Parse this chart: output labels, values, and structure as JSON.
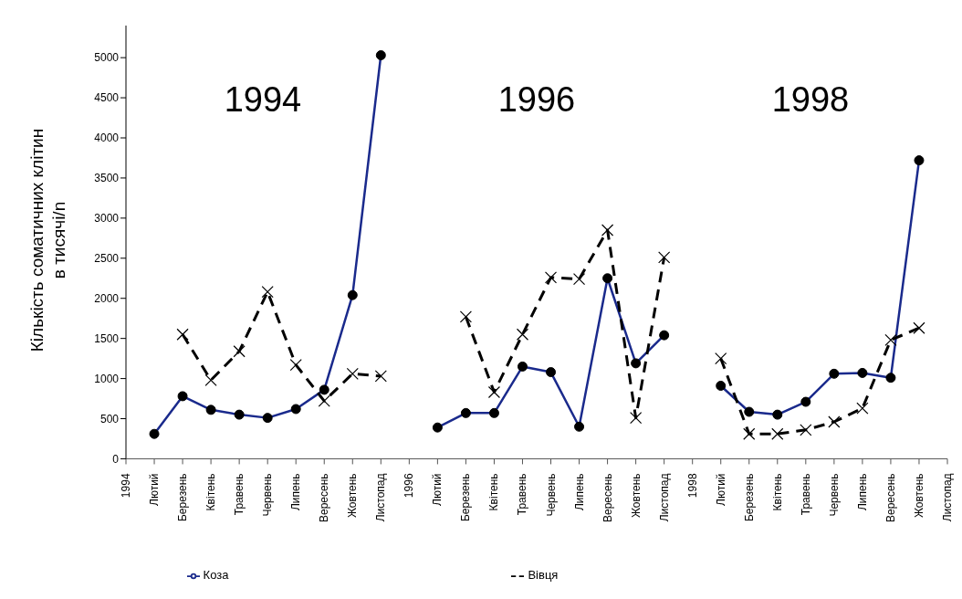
{
  "chart_data": {
    "type": "line",
    "ylabel": "Кількість соматичних клітин\nв тисячі/n",
    "categories": [
      "1994",
      "Лютий",
      "Березень",
      "Квітень",
      "Травень",
      "Червень",
      "Липень",
      "Вересень",
      "Жовтень",
      "Листопад",
      "1996",
      "Лютий",
      "Березень",
      "Квітень",
      "Травень",
      "Червень",
      "Липень",
      "Вересень",
      "Жовтень",
      "Листопад",
      "1998",
      "Лютий",
      "Березень",
      "Квітень",
      "Травень",
      "Червень",
      "Липень",
      "Вересень",
      "Жовтень",
      "Листопад"
    ],
    "series": [
      {
        "name": "Коза",
        "color": "#1a2a8c",
        "marker": "circle",
        "line_style": "solid",
        "values": [
          null,
          310,
          780,
          610,
          550,
          510,
          620,
          860,
          2040,
          5030,
          null,
          390,
          570,
          570,
          1150,
          1080,
          400,
          2250,
          1190,
          1540,
          null,
          910,
          585,
          550,
          710,
          1060,
          1070,
          1010,
          3720,
          null
        ]
      },
      {
        "name": "Вівця",
        "color": "#000000",
        "marker": "cross",
        "line_style": "dashed",
        "values": [
          null,
          null,
          1550,
          980,
          1340,
          2080,
          1170,
          720,
          1060,
          1030,
          null,
          null,
          1770,
          830,
          1550,
          2260,
          2240,
          2850,
          510,
          2510,
          null,
          1250,
          310,
          310,
          360,
          460,
          630,
          1480,
          1630,
          null
        ]
      }
    ],
    "ylim": [
      0,
      5400
    ],
    "yticks": [
      0,
      500,
      1000,
      1500,
      2000,
      2500,
      3000,
      3500,
      4000,
      4500,
      5000
    ],
    "annotations": [
      "1994",
      "1996",
      "1998"
    ],
    "grid": false,
    "legend": "bottom"
  }
}
